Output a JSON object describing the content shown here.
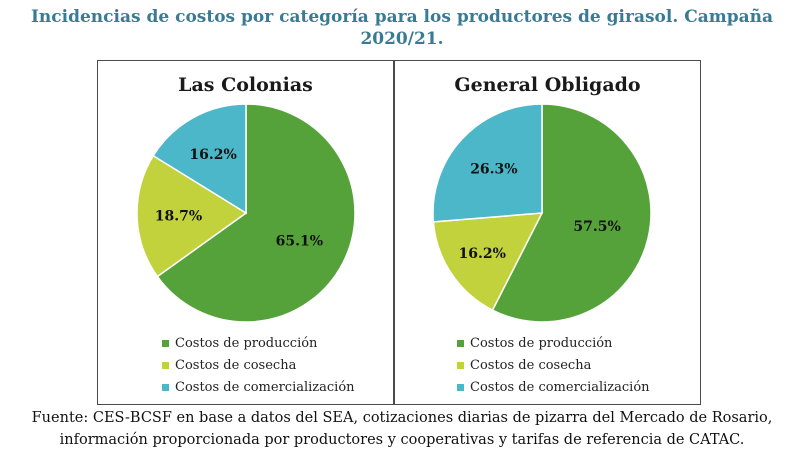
{
  "title": "Incidencias de costos por categoría para los productores de girasol. Campaña 2020/21.",
  "source": "Fuente: CES-BCSF en base a datos del SEA, cotizaciones diarias de pizarra del Mercado de Rosario, información proporcionada por productores y cooperativas y tarifas de referencia de CATAC.",
  "colors": {
    "Costos de producción": "#55a13a",
    "Costos de cosecha": "#c2d23c",
    "Costos de comercialización": "#4bb7c8"
  },
  "chart_data": [
    {
      "type": "pie",
      "title": "Las Colonias",
      "categories": [
        "Costos de producción",
        "Costos de cosecha",
        "Costos de comercialización"
      ],
      "values": [
        65.1,
        18.7,
        16.2
      ],
      "labels": [
        "65.1%",
        "18.7%",
        "16.2%"
      ],
      "legend": [
        "Costos de producción",
        "Costos de cosecha",
        "Costos de comercialización"
      ],
      "legend_placement": "bottom"
    },
    {
      "type": "pie",
      "title": "General Obligado",
      "categories": [
        "Costos de producción",
        "Costos de cosecha",
        "Costos de comercialización"
      ],
      "values": [
        57.5,
        16.2,
        26.3
      ],
      "labels": [
        "57.5%",
        "16.2%",
        "26.3%"
      ],
      "legend": [
        "Costos de producción",
        "Costos de cosecha",
        "Costos de comercialización"
      ],
      "legend_placement": "bottom"
    }
  ]
}
